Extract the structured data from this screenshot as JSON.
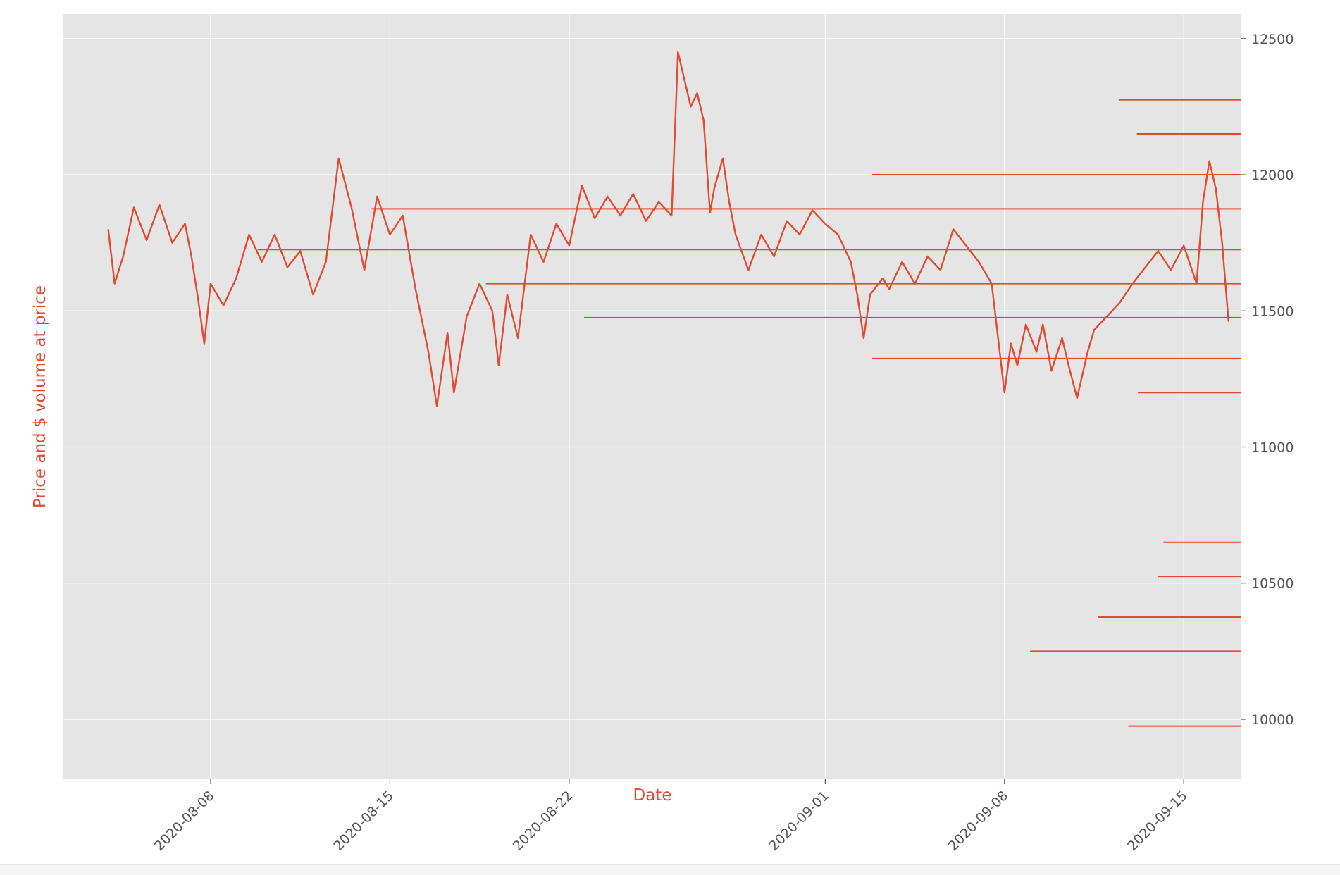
{
  "chart_data": {
    "type": "line",
    "xlabel": "Date",
    "ylabel": "Price and $ volume at price",
    "x_range": [
      "2020-08-02T06:00",
      "2020-09-17T06:00"
    ],
    "y_range": [
      9780,
      12590
    ],
    "x_ticks": [
      {
        "date": "2020-08-08",
        "label": "2020-08-08"
      },
      {
        "date": "2020-08-15",
        "label": "2020-08-15"
      },
      {
        "date": "2020-08-22",
        "label": "2020-08-22"
      },
      {
        "date": "2020-09-01",
        "label": "2020-09-01"
      },
      {
        "date": "2020-09-08",
        "label": "2020-09-08"
      },
      {
        "date": "2020-09-15",
        "label": "2020-09-15"
      }
    ],
    "y_ticks": [
      {
        "value": 10000,
        "label": "10000"
      },
      {
        "value": 10500,
        "label": "10500"
      },
      {
        "value": 11000,
        "label": "11000"
      },
      {
        "value": 11500,
        "label": "11500"
      },
      {
        "value": 12000,
        "label": "12000"
      },
      {
        "value": 12500,
        "label": "12500"
      }
    ],
    "grid": true,
    "y_axis_side": "right",
    "x_tick_rotation": 45,
    "color": "#E24A33",
    "background": "#E5E5E5",
    "series": [
      {
        "points": [
          [
            "2020-08-04T00:00",
            11800
          ],
          [
            "2020-08-04T06:00",
            11600
          ],
          [
            "2020-08-04T14:00",
            11700
          ],
          [
            "2020-08-05T00:00",
            11880
          ],
          [
            "2020-08-05T12:00",
            11760
          ],
          [
            "2020-08-06T00:00",
            11890
          ],
          [
            "2020-08-06T12:00",
            11750
          ],
          [
            "2020-08-07T00:00",
            11820
          ],
          [
            "2020-08-07T06:00",
            11700
          ],
          [
            "2020-08-07T12:00",
            11550
          ],
          [
            "2020-08-07T18:00",
            11380
          ],
          [
            "2020-08-08T00:00",
            11600
          ],
          [
            "2020-08-08T12:00",
            11520
          ],
          [
            "2020-08-09T00:00",
            11620
          ],
          [
            "2020-08-09T12:00",
            11780
          ],
          [
            "2020-08-10T00:00",
            11680
          ],
          [
            "2020-08-10T12:00",
            11780
          ],
          [
            "2020-08-11T00:00",
            11660
          ],
          [
            "2020-08-11T12:00",
            11720
          ],
          [
            "2020-08-12T00:00",
            11560
          ],
          [
            "2020-08-12T12:00",
            11680
          ],
          [
            "2020-08-13T00:00",
            12060
          ],
          [
            "2020-08-13T12:00",
            11880
          ],
          [
            "2020-08-14T00:00",
            11650
          ],
          [
            "2020-08-14T12:00",
            11920
          ],
          [
            "2020-08-15T00:00",
            11780
          ],
          [
            "2020-08-15T12:00",
            11850
          ],
          [
            "2020-08-16T00:00",
            11580
          ],
          [
            "2020-08-16T12:00",
            11350
          ],
          [
            "2020-08-16T20:00",
            11150
          ],
          [
            "2020-08-17T06:00",
            11420
          ],
          [
            "2020-08-17T12:00",
            11200
          ],
          [
            "2020-08-18T00:00",
            11480
          ],
          [
            "2020-08-18T12:00",
            11600
          ],
          [
            "2020-08-19T00:00",
            11500
          ],
          [
            "2020-08-19T06:00",
            11300
          ],
          [
            "2020-08-19T14:00",
            11560
          ],
          [
            "2020-08-20T00:00",
            11400
          ],
          [
            "2020-08-20T12:00",
            11780
          ],
          [
            "2020-08-21T00:00",
            11680
          ],
          [
            "2020-08-21T12:00",
            11820
          ],
          [
            "2020-08-22T00:00",
            11740
          ],
          [
            "2020-08-22T12:00",
            11960
          ],
          [
            "2020-08-23T00:00",
            11840
          ],
          [
            "2020-08-23T12:00",
            11920
          ],
          [
            "2020-08-24T00:00",
            11850
          ],
          [
            "2020-08-24T12:00",
            11930
          ],
          [
            "2020-08-25T00:00",
            11830
          ],
          [
            "2020-08-25T12:00",
            11900
          ],
          [
            "2020-08-26T00:00",
            11850
          ],
          [
            "2020-08-26T06:00",
            12450
          ],
          [
            "2020-08-26T12:00",
            12350
          ],
          [
            "2020-08-26T18:00",
            12250
          ],
          [
            "2020-08-27T00:00",
            12300
          ],
          [
            "2020-08-27T06:00",
            12200
          ],
          [
            "2020-08-27T12:00",
            11860
          ],
          [
            "2020-08-27T16:00",
            11950
          ],
          [
            "2020-08-28T00:00",
            12060
          ],
          [
            "2020-08-28T06:00",
            11900
          ],
          [
            "2020-08-28T12:00",
            11780
          ],
          [
            "2020-08-29T00:00",
            11650
          ],
          [
            "2020-08-29T12:00",
            11780
          ],
          [
            "2020-08-30T00:00",
            11700
          ],
          [
            "2020-08-30T12:00",
            11830
          ],
          [
            "2020-08-31T00:00",
            11780
          ],
          [
            "2020-08-31T12:00",
            11870
          ],
          [
            "2020-09-01T00:00",
            11820
          ],
          [
            "2020-09-01T12:00",
            11780
          ],
          [
            "2020-09-02T00:00",
            11680
          ],
          [
            "2020-09-02T06:00",
            11560
          ],
          [
            "2020-09-02T12:00",
            11400
          ],
          [
            "2020-09-02T18:00",
            11560
          ],
          [
            "2020-09-03T06:00",
            11620
          ],
          [
            "2020-09-03T12:00",
            11580
          ],
          [
            "2020-09-04T00:00",
            11680
          ],
          [
            "2020-09-04T12:00",
            11600
          ],
          [
            "2020-09-05T00:00",
            11700
          ],
          [
            "2020-09-05T12:00",
            11650
          ],
          [
            "2020-09-06T00:00",
            11800
          ],
          [
            "2020-09-06T12:00",
            11740
          ],
          [
            "2020-09-07T00:00",
            11680
          ],
          [
            "2020-09-07T12:00",
            11600
          ],
          [
            "2020-09-07T18:00",
            11400
          ],
          [
            "2020-09-08T00:00",
            11200
          ],
          [
            "2020-09-08T06:00",
            11380
          ],
          [
            "2020-09-08T12:00",
            11300
          ],
          [
            "2020-09-08T20:00",
            11450
          ],
          [
            "2020-09-09T06:00",
            11350
          ],
          [
            "2020-09-09T12:00",
            11450
          ],
          [
            "2020-09-09T20:00",
            11280
          ],
          [
            "2020-09-10T06:00",
            11400
          ],
          [
            "2020-09-10T12:00",
            11300
          ],
          [
            "2020-09-10T20:00",
            11180
          ],
          [
            "2020-09-11T06:00",
            11350
          ],
          [
            "2020-09-11T12:00",
            11430
          ],
          [
            "2020-09-12T00:00",
            11480
          ],
          [
            "2020-09-12T12:00",
            11530
          ],
          [
            "2020-09-13T00:00",
            11600
          ],
          [
            "2020-09-13T12:00",
            11660
          ],
          [
            "2020-09-14T00:00",
            11720
          ],
          [
            "2020-09-14T12:00",
            11650
          ],
          [
            "2020-09-15T00:00",
            11740
          ],
          [
            "2020-09-15T12:00",
            11600
          ],
          [
            "2020-09-15T18:00",
            11900
          ],
          [
            "2020-09-16T00:00",
            12050
          ],
          [
            "2020-09-16T06:00",
            11950
          ],
          [
            "2020-09-16T12:00",
            11750
          ],
          [
            "2020-09-16T18:00",
            11460
          ]
        ]
      }
    ],
    "volume_profile": [
      {
        "price": 12275,
        "from": "2020-09-12T11:00"
      },
      {
        "price": 12150,
        "from": "2020-09-13T04:00"
      },
      {
        "price": 12000,
        "from": "2020-09-02T20:00"
      },
      {
        "price": 11875,
        "from": "2020-08-14T07:00"
      },
      {
        "price": 11725,
        "from": "2020-08-09T20:00"
      },
      {
        "price": 11600,
        "from": "2020-08-18T18:00"
      },
      {
        "price": 11475,
        "from": "2020-08-22T14:00"
      },
      {
        "price": 11325,
        "from": "2020-09-02T20:00"
      },
      {
        "price": 11200,
        "from": "2020-09-13T05:00"
      },
      {
        "price": 10650,
        "from": "2020-09-14T05:00"
      },
      {
        "price": 10525,
        "from": "2020-09-14T00:00"
      },
      {
        "price": 10375,
        "from": "2020-09-11T16:00"
      },
      {
        "price": 10250,
        "from": "2020-09-09T00:00"
      },
      {
        "price": 9975,
        "from": "2020-09-12T20:00"
      }
    ]
  }
}
